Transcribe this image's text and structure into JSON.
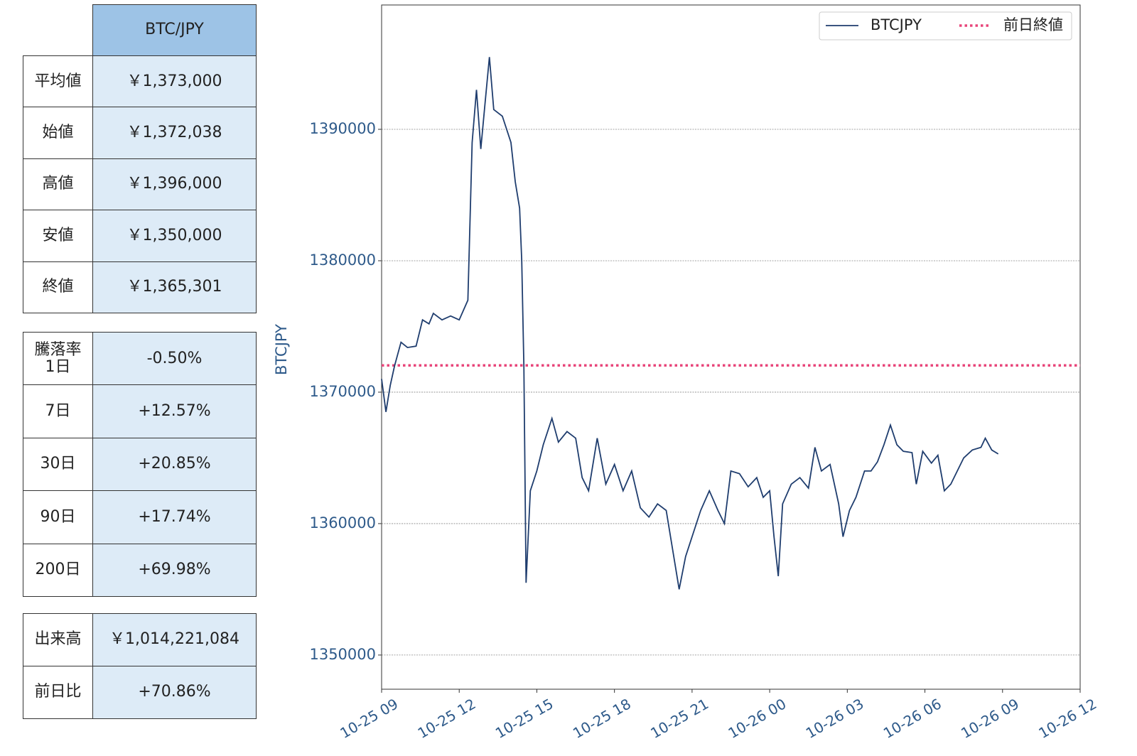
{
  "tables": [
    {
      "header": "BTC/JPY",
      "rows": [
        [
          "平均値",
          "￥1,373,000"
        ],
        [
          "始値",
          "￥1,372,038"
        ],
        [
          "高値",
          "￥1,396,000"
        ],
        [
          "安値",
          "￥1,350,000"
        ],
        [
          "終値",
          "￥1,365,301"
        ]
      ]
    },
    {
      "title": "騰落率",
      "rows": [
        [
          "1日",
          "-0.50%"
        ],
        [
          "7日",
          "+12.57%"
        ],
        [
          "30日",
          "+20.85%"
        ],
        [
          "90日",
          "+17.74%"
        ],
        [
          "200日",
          "+69.98%"
        ]
      ]
    },
    {
      "rows": [
        [
          "出来高",
          "￥1,014,221,084"
        ],
        [
          "前日比",
          "+70.86%"
        ]
      ]
    }
  ],
  "chart_data": {
    "type": "line",
    "ylabel": "BTCJPY",
    "x": [
      "10-25 09:00",
      "10-25 09:10",
      "10-25 09:20",
      "10-25 09:30",
      "10-25 09:45",
      "10-25 10:00",
      "10-25 10:20",
      "10-25 10:35",
      "10-25 10:50",
      "10-25 11:00",
      "10-25 11:20",
      "10-25 11:40",
      "10-25 12:00",
      "10-25 12:20",
      "10-25 12:30",
      "10-25 12:40",
      "10-25 12:50",
      "10-25 13:00",
      "10-25 13:10",
      "10-25 13:20",
      "10-25 13:40",
      "10-25 14:00",
      "10-25 14:10",
      "10-25 14:20",
      "10-25 14:25",
      "10-25 14:30",
      "10-25 14:35",
      "10-25 14:45",
      "10-25 15:00",
      "10-25 15:15",
      "10-25 15:35",
      "10-25 15:50",
      "10-25 16:10",
      "10-25 16:30",
      "10-25 16:45",
      "10-25 17:00",
      "10-25 17:20",
      "10-25 17:40",
      "10-25 18:00",
      "10-25 18:20",
      "10-25 18:40",
      "10-25 19:00",
      "10-25 19:20",
      "10-25 19:40",
      "10-25 20:00",
      "10-25 20:15",
      "10-25 20:30",
      "10-25 20:45",
      "10-25 21:00",
      "10-25 21:20",
      "10-25 21:40",
      "10-25 22:00",
      "10-25 22:15",
      "10-25 22:30",
      "10-25 22:50",
      "10-25 23:10",
      "10-25 23:30",
      "10-25 23:45",
      "10-26 00:00",
      "10-26 00:10",
      "10-26 00:20",
      "10-26 00:30",
      "10-26 00:50",
      "10-26 01:10",
      "10-26 01:30",
      "10-26 01:45",
      "10-26 02:00",
      "10-26 02:20",
      "10-26 02:40",
      "10-26 02:50",
      "10-26 03:05",
      "10-26 03:20",
      "10-26 03:40",
      "10-26 03:55",
      "10-26 04:10",
      "10-26 04:25",
      "10-26 04:40",
      "10-26 04:55",
      "10-26 05:10",
      "10-26 05:30",
      "10-26 05:40",
      "10-26 05:55",
      "10-26 06:15",
      "10-26 06:30",
      "10-26 06:45",
      "10-26 07:00",
      "10-26 07:15",
      "10-26 07:30",
      "10-26 07:50",
      "10-26 08:10",
      "10-26 08:20",
      "10-26 08:35",
      "10-26 08:50"
    ],
    "series": [
      {
        "name": "BTCJPY",
        "color": "#1f3d6e",
        "values": [
          1371000,
          1368500,
          1370500,
          1372000,
          1373800,
          1373400,
          1373500,
          1375500,
          1375200,
          1376000,
          1375500,
          1375800,
          1375500,
          1377000,
          1389000,
          1393000,
          1388500,
          1392000,
          1395500,
          1391500,
          1391000,
          1389000,
          1386000,
          1384000,
          1380000,
          1372000,
          1355500,
          1362500,
          1364000,
          1366000,
          1368000,
          1366200,
          1367000,
          1366500,
          1363500,
          1362500,
          1366500,
          1363000,
          1364500,
          1362500,
          1364000,
          1361200,
          1360500,
          1361500,
          1361000,
          1358000,
          1355000,
          1357500,
          1359000,
          1361000,
          1362500,
          1361000,
          1360000,
          1364000,
          1363800,
          1362800,
          1363500,
          1362000,
          1362500,
          1359000,
          1356000,
          1361500,
          1363000,
          1363500,
          1362700,
          1365800,
          1364000,
          1364500,
          1361500,
          1359000,
          1361000,
          1362000,
          1364000,
          1364000,
          1364700,
          1366000,
          1367500,
          1366000,
          1365500,
          1365400,
          1363000,
          1365500,
          1364600,
          1365200,
          1362500,
          1363000,
          1364000,
          1365000,
          1365600,
          1365800,
          1366500,
          1365600,
          1365300
        ]
      }
    ],
    "reference_line": {
      "name": "前日終値",
      "value": 1372038,
      "color": "#e8457a",
      "style": "dotted"
    },
    "xlim": [
      "10-25 09",
      "10-26 12"
    ],
    "xticks": [
      "10-25 09",
      "10-25 12",
      "10-25 15",
      "10-25 18",
      "10-25 21",
      "10-26 00",
      "10-26 03",
      "10-26 06",
      "10-26 09",
      "10-26 12"
    ],
    "ylim": [
      1347400,
      1399460
    ],
    "yticks": [
      1350000,
      1360000,
      1370000,
      1380000,
      1390000
    ],
    "grid": true,
    "legend": "upper right"
  }
}
